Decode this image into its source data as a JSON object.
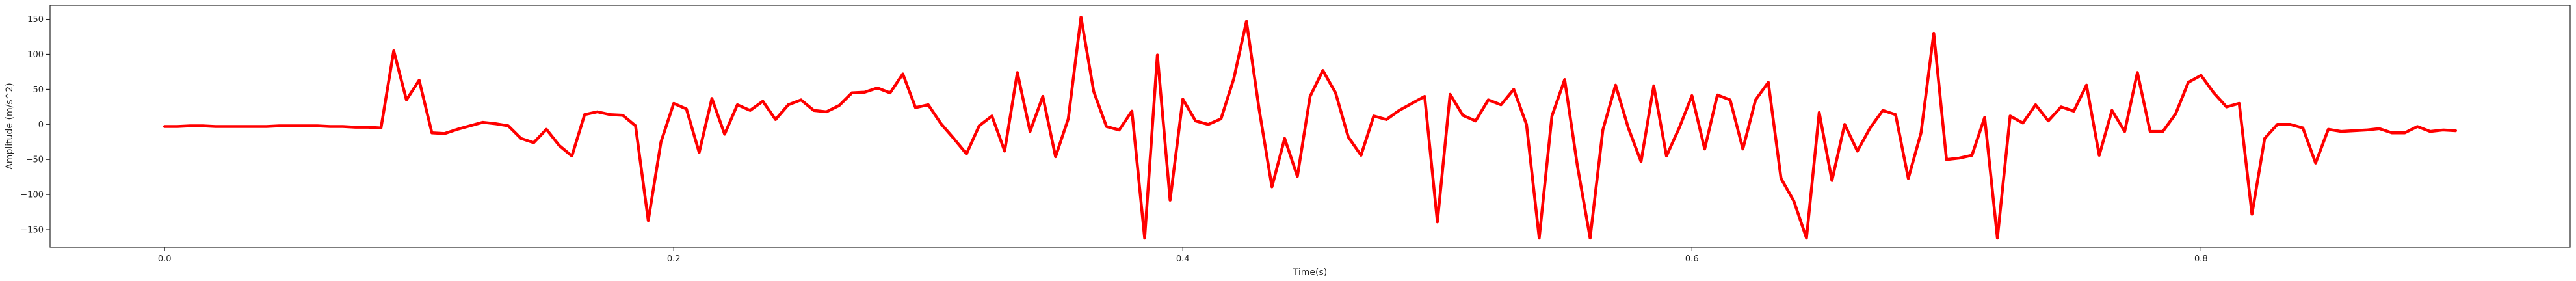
{
  "chart_data": {
    "type": "line",
    "xlabel": "Time(s)",
    "ylabel": "Amplitude (m/s^2)",
    "xlim": [
      -0.045,
      0.945
    ],
    "ylim": [
      -175,
      170
    ],
    "xticks": [
      0.0,
      0.2,
      0.4,
      0.6,
      0.8
    ],
    "xtick_labels": [
      "0.0",
      "0.2",
      "0.4",
      "0.6",
      "0.8"
    ],
    "yticks": [
      -150,
      -100,
      -50,
      0,
      50,
      100,
      150
    ],
    "ytick_labels": [
      "−150",
      "−100",
      "−50",
      "0",
      "50",
      "100",
      "150"
    ],
    "grid": false,
    "series": [
      {
        "color": "#ff0000",
        "x": [
          0.0,
          0.005,
          0.01,
          0.015,
          0.02,
          0.025,
          0.03,
          0.035,
          0.04,
          0.045,
          0.05,
          0.055,
          0.06,
          0.065,
          0.07,
          0.075,
          0.08,
          0.085,
          0.09,
          0.095,
          0.1,
          0.105,
          0.11,
          0.115,
          0.12,
          0.125,
          0.13,
          0.135,
          0.14,
          0.145,
          0.15,
          0.155,
          0.16,
          0.165,
          0.17,
          0.175,
          0.18,
          0.185,
          0.19,
          0.195,
          0.2,
          0.205,
          0.21,
          0.215,
          0.22,
          0.225,
          0.23,
          0.235,
          0.24,
          0.245,
          0.25,
          0.255,
          0.26,
          0.265,
          0.27,
          0.275,
          0.28,
          0.285,
          0.29,
          0.295,
          0.3,
          0.305,
          0.31,
          0.315,
          0.32,
          0.325,
          0.33,
          0.335,
          0.34,
          0.345,
          0.35,
          0.355,
          0.36,
          0.365,
          0.37,
          0.375,
          0.38,
          0.385,
          0.39,
          0.395,
          0.4,
          0.405,
          0.41,
          0.415,
          0.42,
          0.425,
          0.43,
          0.435,
          0.44,
          0.445,
          0.45,
          0.455,
          0.46,
          0.465,
          0.47,
          0.475,
          0.48,
          0.485,
          0.49,
          0.495,
          0.5,
          0.505,
          0.51,
          0.515,
          0.52,
          0.525,
          0.53,
          0.535,
          0.54,
          0.545,
          0.55,
          0.555,
          0.56,
          0.565,
          0.57,
          0.575,
          0.58,
          0.585,
          0.59,
          0.595,
          0.6,
          0.605,
          0.61,
          0.615,
          0.62,
          0.625,
          0.63,
          0.635,
          0.64,
          0.645,
          0.65,
          0.655,
          0.66,
          0.665,
          0.67,
          0.675,
          0.68,
          0.685,
          0.69,
          0.695,
          0.7,
          0.705,
          0.71,
          0.715,
          0.72,
          0.725,
          0.73,
          0.735,
          0.74,
          0.745,
          0.75,
          0.755,
          0.76,
          0.765,
          0.77,
          0.775,
          0.78,
          0.785,
          0.79,
          0.795,
          0.8,
          0.805,
          0.81,
          0.815,
          0.82,
          0.825,
          0.83,
          0.835,
          0.84,
          0.845,
          0.85,
          0.855,
          0.86,
          0.865,
          0.87,
          0.875,
          0.88,
          0.885,
          0.89,
          0.895,
          0.9
        ],
        "y": [
          -3,
          -3,
          -2,
          -2,
          -3,
          -3,
          -3,
          -3,
          -3,
          -2,
          -2,
          -2,
          -2,
          -3,
          -3,
          -4,
          -4,
          -5,
          105,
          35,
          63,
          -12,
          -13,
          -7,
          -2,
          3,
          1,
          -2,
          -20,
          -26,
          -7,
          -30,
          -45,
          14,
          18,
          14,
          13,
          -2,
          -137,
          -25,
          30,
          22,
          -40,
          37,
          -14,
          28,
          20,
          33,
          7,
          28,
          35,
          20,
          18,
          27,
          45,
          46,
          52,
          45,
          72,
          24,
          28,
          1,
          -20,
          -42,
          -2,
          12,
          -38,
          74,
          -10,
          40,
          -46,
          8,
          153,
          47,
          -3,
          -8,
          19,
          -162,
          99,
          -108,
          36,
          5,
          0,
          8,
          65,
          147,
          21,
          -89,
          -20,
          -74,
          40,
          77,
          45,
          -18,
          -44,
          12,
          7,
          20,
          30,
          40,
          -139,
          43,
          13,
          5,
          35,
          28,
          50,
          0,
          -162,
          12,
          64,
          -59,
          -162,
          -8,
          56,
          -5,
          -53,
          55,
          -45,
          -5,
          41,
          -35,
          42,
          35,
          -35,
          35,
          60,
          -77,
          -109,
          -162,
          17,
          -80,
          0,
          -38,
          -5,
          20,
          14,
          -77,
          -12,
          130,
          -50,
          -48,
          -44,
          10,
          -162,
          12,
          2,
          28,
          5,
          25,
          19,
          56,
          -44,
          20,
          -10,
          74,
          -10,
          -10,
          15,
          60,
          70,
          45,
          25,
          30,
          -128,
          -20,
          0,
          0,
          -5,
          -55,
          -7,
          -10,
          -9,
          -8,
          -6,
          -12,
          -12,
          -3,
          -10,
          -8,
          -9
        ]
      }
    ]
  }
}
